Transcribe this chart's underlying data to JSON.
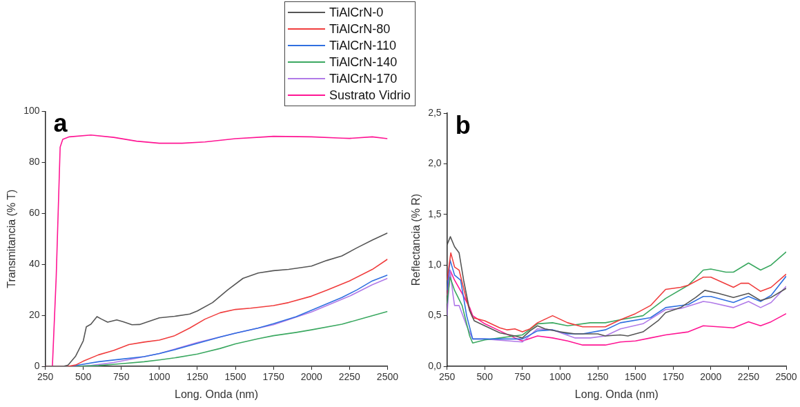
{
  "chart_data": [
    {
      "type": "line",
      "title": "a",
      "xlabel": "Long. Onda (nm)",
      "ylabel": "Transmitancia (% T)",
      "xlim": [
        250,
        2500
      ],
      "xticks": [
        250,
        500,
        750,
        1000,
        1250,
        1500,
        1750,
        2000,
        2250,
        2500
      ],
      "ylim": [
        0,
        100
      ],
      "yticks": [
        0,
        20,
        40,
        60,
        80,
        100
      ],
      "grid": false,
      "legend": "top right",
      "marker": "none",
      "line_style": "solid",
      "series": [
        {
          "name": "TiAlCrN-0",
          "color": "#555555",
          "x": [
            250,
            370,
            400,
            450,
            500,
            520,
            550,
            590,
            620,
            660,
            720,
            760,
            820,
            870,
            950,
            1000,
            1100,
            1200,
            1250,
            1350,
            1450,
            1550,
            1650,
            1750,
            1850,
            2000,
            2100,
            2200,
            2300,
            2400,
            2500
          ],
          "values": [
            0,
            0,
            0.5,
            4,
            10,
            15.5,
            16.5,
            19.5,
            18.5,
            17.3,
            18.2,
            17.5,
            16.3,
            16.4,
            18,
            19,
            19.6,
            20.5,
            21.7,
            25,
            30,
            34.5,
            36.6,
            37.5,
            38,
            39.3,
            41.5,
            43.3,
            46.5,
            49.5,
            52.3
          ]
        },
        {
          "name": "TiAlCrN-80",
          "color": "#f03c3c",
          "x": [
            250,
            400,
            450,
            500,
            600,
            700,
            800,
            900,
            1000,
            1100,
            1200,
            1300,
            1400,
            1500,
            1600,
            1750,
            1850,
            2000,
            2100,
            2250,
            2400,
            2500
          ],
          "values": [
            0,
            0,
            0.5,
            2,
            4.5,
            6.2,
            8.5,
            9.5,
            10.3,
            12,
            15,
            18.5,
            21,
            22.3,
            22.8,
            23.8,
            25,
            27.5,
            29.8,
            33.5,
            38,
            42
          ]
        },
        {
          "name": "TiAlCrN-110",
          "color": "#2f6fe0",
          "x": [
            250,
            420,
            500,
            600,
            750,
            900,
            1000,
            1100,
            1250,
            1400,
            1500,
            1650,
            1750,
            1900,
            2000,
            2200,
            2300,
            2400,
            2500
          ],
          "values": [
            0,
            0,
            0.8,
            1.8,
            2.8,
            3.8,
            5,
            6.5,
            9,
            11.5,
            13,
            15,
            16.7,
            19.5,
            22,
            27,
            30,
            33.5,
            35.8
          ]
        },
        {
          "name": "TiAlCrN-140",
          "color": "#3aa860",
          "x": [
            250,
            450,
            600,
            750,
            900,
            1000,
            1100,
            1250,
            1400,
            1500,
            1650,
            1750,
            1900,
            2000,
            2200,
            2350,
            2500
          ],
          "values": [
            0,
            0,
            0.3,
            1,
            1.8,
            2.5,
            3.3,
            4.8,
            7,
            8.8,
            10.8,
            12,
            13.3,
            14.3,
            16.5,
            19,
            21.5
          ]
        },
        {
          "name": "TiAlCrN-170",
          "color": "#b07ae8",
          "x": [
            250,
            450,
            550,
            700,
            850,
            1000,
            1250,
            1500,
            1750,
            2000,
            2250,
            2400,
            2500
          ],
          "values": [
            0,
            0,
            0.3,
            1.5,
            3.2,
            5,
            9.3,
            13,
            16.3,
            21.3,
            27.5,
            32,
            34.5
          ]
        },
        {
          "name": "Sustrato Vidrio",
          "color": "#ff1493",
          "x": [
            250,
            297,
            322,
            348,
            365,
            408,
            550,
            700,
            850,
            1000,
            1150,
            1300,
            1500,
            1700,
            1750,
            2000,
            2200,
            2250,
            2400,
            2500
          ],
          "values": [
            0,
            0,
            35,
            86,
            89,
            90,
            90.7,
            89.8,
            88.3,
            87.5,
            87.5,
            88,
            89.3,
            90,
            90.2,
            90,
            89.5,
            89.4,
            90,
            89.3
          ]
        }
      ]
    },
    {
      "type": "line",
      "title": "b",
      "xlabel": "Long. Onda (nm)",
      "ylabel": "Reflectancia (% R)",
      "xlim": [
        250,
        2500
      ],
      "xticks": [
        250,
        500,
        750,
        1000,
        1250,
        1500,
        1750,
        2000,
        2250,
        2500
      ],
      "ylim": [
        0,
        2.5
      ],
      "yticks": [
        {
          "value": 0,
          "label": "0,0"
        },
        {
          "value": 0.5,
          "label": "0,5"
        },
        {
          "value": 1,
          "label": "1,0"
        },
        {
          "value": 1.5,
          "label": "1,5"
        },
        {
          "value": 2,
          "label": "2,0"
        },
        {
          "value": 2.5,
          "label": "2,5"
        }
      ],
      "grid": false,
      "marker": "none",
      "line_style": "solid",
      "series": [
        {
          "color": "#555555",
          "x": [
            250,
            272,
            300,
            330,
            360,
            400,
            430,
            500,
            600,
            700,
            750,
            800,
            850,
            900,
            1000,
            1100,
            1250,
            1300,
            1400,
            1450,
            1550,
            1650,
            1700,
            1800,
            1900,
            1960,
            2050,
            2150,
            2250,
            2330,
            2400,
            2500
          ],
          "values": [
            1.2,
            1.28,
            1.18,
            1.12,
            0.85,
            0.55,
            0.45,
            0.4,
            0.33,
            0.3,
            0.28,
            0.35,
            0.4,
            0.37,
            0.34,
            0.32,
            0.32,
            0.3,
            0.31,
            0.3,
            0.34,
            0.45,
            0.53,
            0.58,
            0.68,
            0.75,
            0.72,
            0.68,
            0.72,
            0.65,
            0.68,
            0.77
          ]
        },
        {
          "color": "#f03c3c",
          "x": [
            250,
            275,
            300,
            330,
            380,
            400,
            420,
            500,
            600,
            650,
            700,
            750,
            800,
            850,
            950,
            1050,
            1150,
            1300,
            1400,
            1500,
            1600,
            1700,
            1800,
            1850,
            1950,
            2000,
            2150,
            2200,
            2250,
            2330,
            2400,
            2500
          ],
          "values": [
            0.85,
            1.12,
            0.98,
            0.95,
            0.65,
            0.55,
            0.48,
            0.45,
            0.38,
            0.36,
            0.37,
            0.34,
            0.37,
            0.43,
            0.5,
            0.43,
            0.39,
            0.39,
            0.46,
            0.52,
            0.6,
            0.76,
            0.78,
            0.8,
            0.88,
            0.88,
            0.78,
            0.82,
            0.82,
            0.74,
            0.78,
            0.91
          ]
        },
        {
          "color": "#2f6fe0",
          "x": [
            250,
            270,
            300,
            340,
            380,
            420,
            500,
            750,
            850,
            950,
            1050,
            1150,
            1300,
            1400,
            1600,
            1700,
            1850,
            1950,
            2000,
            2150,
            2250,
            2330,
            2400,
            2500
          ],
          "values": [
            0.75,
            1.05,
            0.9,
            0.85,
            0.5,
            0.27,
            0.27,
            0.27,
            0.35,
            0.36,
            0.32,
            0.32,
            0.36,
            0.43,
            0.48,
            0.58,
            0.61,
            0.69,
            0.69,
            0.63,
            0.69,
            0.64,
            0.7,
            0.89
          ]
        },
        {
          "color": "#3aa860",
          "x": [
            250,
            270,
            300,
            350,
            400,
            420,
            500,
            600,
            750,
            850,
            950,
            1050,
            1200,
            1300,
            1400,
            1550,
            1700,
            1850,
            1950,
            2000,
            2100,
            2150,
            2250,
            2330,
            2400,
            2500
          ],
          "values": [
            0.62,
            0.88,
            0.75,
            0.6,
            0.3,
            0.23,
            0.26,
            0.28,
            0.31,
            0.42,
            0.43,
            0.4,
            0.43,
            0.43,
            0.46,
            0.5,
            0.67,
            0.8,
            0.95,
            0.96,
            0.93,
            0.93,
            1.02,
            0.95,
            1.0,
            1.13
          ]
        },
        {
          "color": "#b07ae8",
          "x": [
            250,
            270,
            290,
            300,
            330,
            380,
            420,
            500,
            750,
            850,
            950,
            1100,
            1200,
            1300,
            1400,
            1550,
            1700,
            1800,
            1950,
            2000,
            2150,
            2250,
            2330,
            2400,
            2500
          ],
          "values": [
            0.5,
            0.95,
            0.7,
            0.6,
            0.6,
            0.4,
            0.27,
            0.27,
            0.24,
            0.37,
            0.36,
            0.28,
            0.28,
            0.3,
            0.37,
            0.42,
            0.56,
            0.57,
            0.64,
            0.63,
            0.58,
            0.64,
            0.58,
            0.63,
            0.79
          ]
        },
        {
          "color": "#ff1493",
          "x": [
            250,
            270,
            300,
            350,
            400,
            420,
            500,
            600,
            700,
            750,
            850,
            950,
            1050,
            1150,
            1300,
            1400,
            1500,
            1600,
            1700,
            1850,
            1950,
            2050,
            2150,
            2250,
            2330,
            2400,
            2500
          ],
          "values": [
            0.7,
            0.95,
            0.85,
            0.72,
            0.58,
            0.5,
            0.42,
            0.35,
            0.28,
            0.25,
            0.3,
            0.28,
            0.25,
            0.21,
            0.21,
            0.24,
            0.25,
            0.28,
            0.31,
            0.34,
            0.4,
            0.39,
            0.38,
            0.44,
            0.4,
            0.44,
            0.52
          ]
        }
      ]
    }
  ]
}
